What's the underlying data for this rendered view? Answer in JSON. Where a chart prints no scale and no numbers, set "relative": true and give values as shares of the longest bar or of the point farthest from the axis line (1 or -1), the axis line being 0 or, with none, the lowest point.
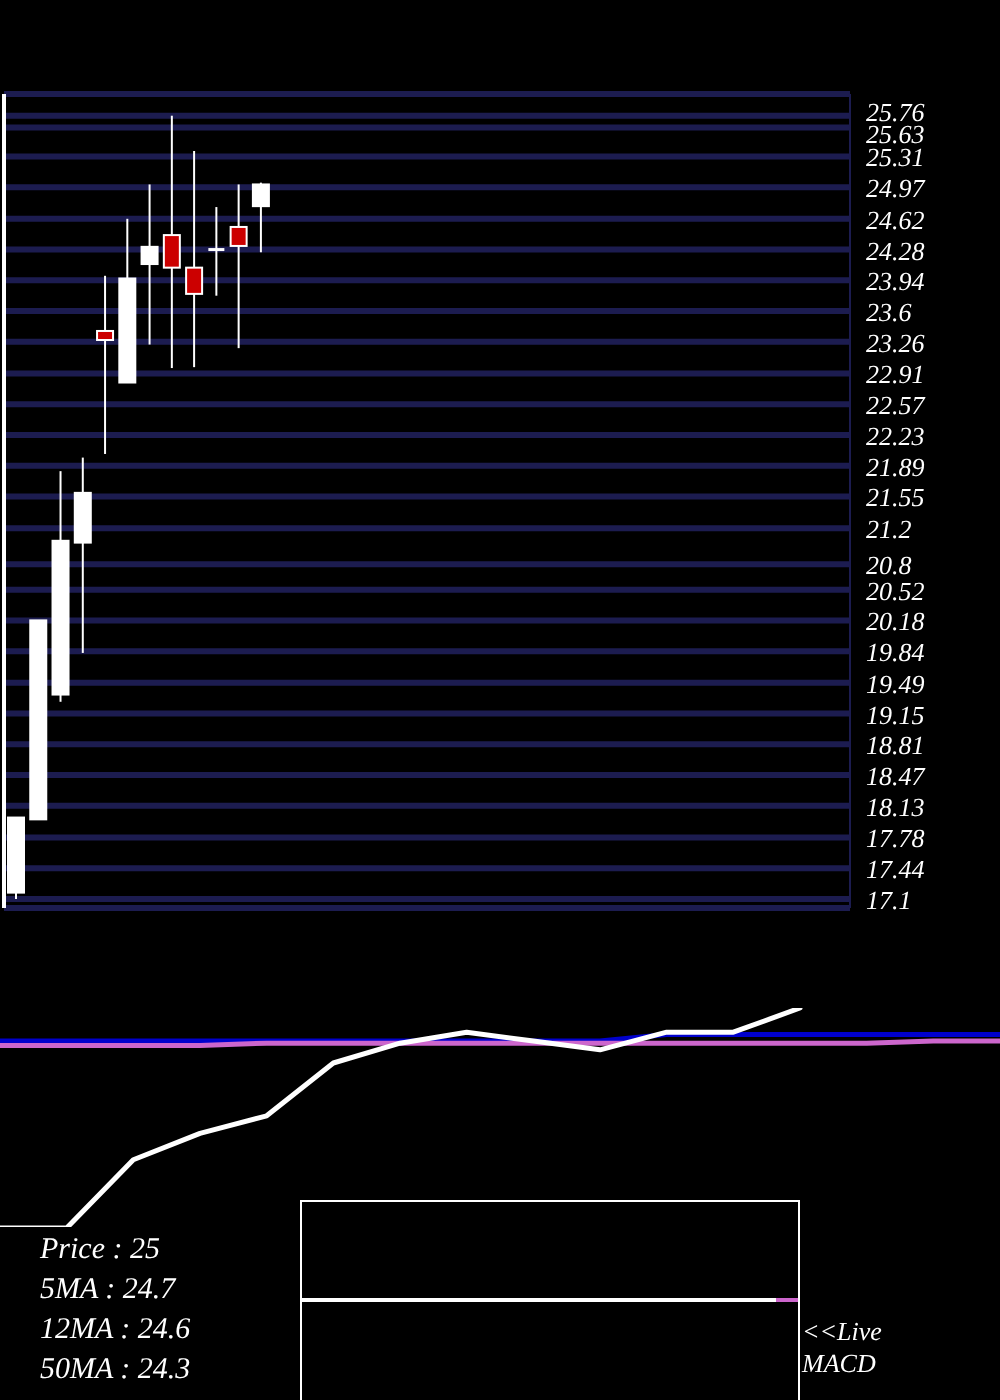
{
  "chart_data": [
    {
      "type": "candlestick",
      "categories": [
        null,
        null,
        null,
        null,
        null,
        null,
        null,
        null,
        null,
        null,
        null,
        null,
        null,
        null,
        null,
        null,
        null,
        null,
        null,
        null,
        null,
        null,
        null,
        null,
        null,
        null,
        null,
        null,
        null,
        null,
        null,
        null,
        null,
        null,
        null,
        null,
        null,
        null
      ],
      "ohlc": [
        [
          17.17,
          18.0,
          17.1,
          18.0
        ],
        [
          17.98,
          20.18,
          17.98,
          20.18
        ],
        [
          19.36,
          21.83,
          19.28,
          21.06
        ],
        [
          21.04,
          21.98,
          19.82,
          21.59
        ],
        [
          23.38,
          23.99,
          22.02,
          23.28
        ],
        [
          22.81,
          24.62,
          22.81,
          23.96
        ],
        [
          24.12,
          25.0,
          23.23,
          24.31
        ],
        [
          24.44,
          25.76,
          22.97,
          24.08
        ],
        [
          24.08,
          25.37,
          22.98,
          23.79
        ],
        [
          24.28,
          24.75,
          23.77,
          24.28
        ],
        [
          24.53,
          25.0,
          23.19,
          24.32
        ],
        [
          24.76,
          25.02,
          24.25,
          25.0
        ],
        null,
        null,
        null,
        null,
        null,
        null,
        null,
        null,
        null,
        null,
        null,
        null,
        null,
        null,
        null,
        null,
        null,
        null,
        null,
        null,
        null,
        null,
        null,
        null,
        null,
        null
      ],
      "colors": [
        "#ffffff",
        "#ffffff",
        "#ffffff",
        "#ffffff",
        "#cc0000",
        "#ffffff",
        "#ffffff",
        "#cc0000",
        "#cc0000",
        "#ffffff",
        "#cc0000",
        "#ffffff",
        null,
        null,
        null,
        null,
        null,
        null,
        null,
        null,
        null,
        null,
        null,
        null,
        null,
        null,
        null,
        null,
        null,
        null,
        null,
        null,
        null,
        null,
        null,
        null,
        null,
        null
      ],
      "ylim": [
        17,
        26
      ],
      "yticks": [
        17.1,
        17.44,
        17.78,
        18.13,
        18.47,
        18.81,
        19.15,
        19.49,
        19.84,
        20.18,
        20.52,
        20.8,
        21.2,
        21.55,
        21.89,
        22.23,
        22.57,
        22.91,
        23.26,
        23.6,
        23.94,
        24.28,
        24.62,
        24.97,
        25.31,
        25.63,
        25.76
      ],
      "grid": "y",
      "tick_labels": "y"
    },
    {
      "type": "line",
      "relative": true,
      "categories": [
        null,
        null,
        null,
        null,
        null,
        null,
        null,
        null,
        null,
        null,
        null,
        null,
        null,
        null,
        null,
        null
      ],
      "series": [
        {
          "color": "#0000cc",
          "values": [
            0.85,
            0.85,
            0.85,
            0.85,
            0.85,
            0.85,
            0.85,
            0.85,
            0.85,
            0.85,
            0.88,
            0.88,
            0.88,
            0.88,
            0.88,
            0.88
          ]
        },
        {
          "color": "#cc66cc",
          "values": [
            0.83,
            0.83,
            0.83,
            0.83,
            0.84,
            0.84,
            0.84,
            0.84,
            0.84,
            0.84,
            0.84,
            0.84,
            0.84,
            0.84,
            0.85,
            0.85
          ]
        },
        {
          "color": "#ffffff",
          "values": [
            0,
            0,
            0.31,
            0.43,
            0.51,
            0.75,
            0.84,
            0.89,
            0.85,
            0.81,
            0.89,
            0.89,
            1,
            null,
            null,
            null
          ]
        }
      ],
      "annotations": [
        "Price : 25",
        "5MA : 24.7",
        "12MA : 24.6",
        "50MA : 24.3"
      ]
    },
    {
      "type": "other",
      "annotations": [
        "<<Live MACD"
      ]
    }
  ]
}
